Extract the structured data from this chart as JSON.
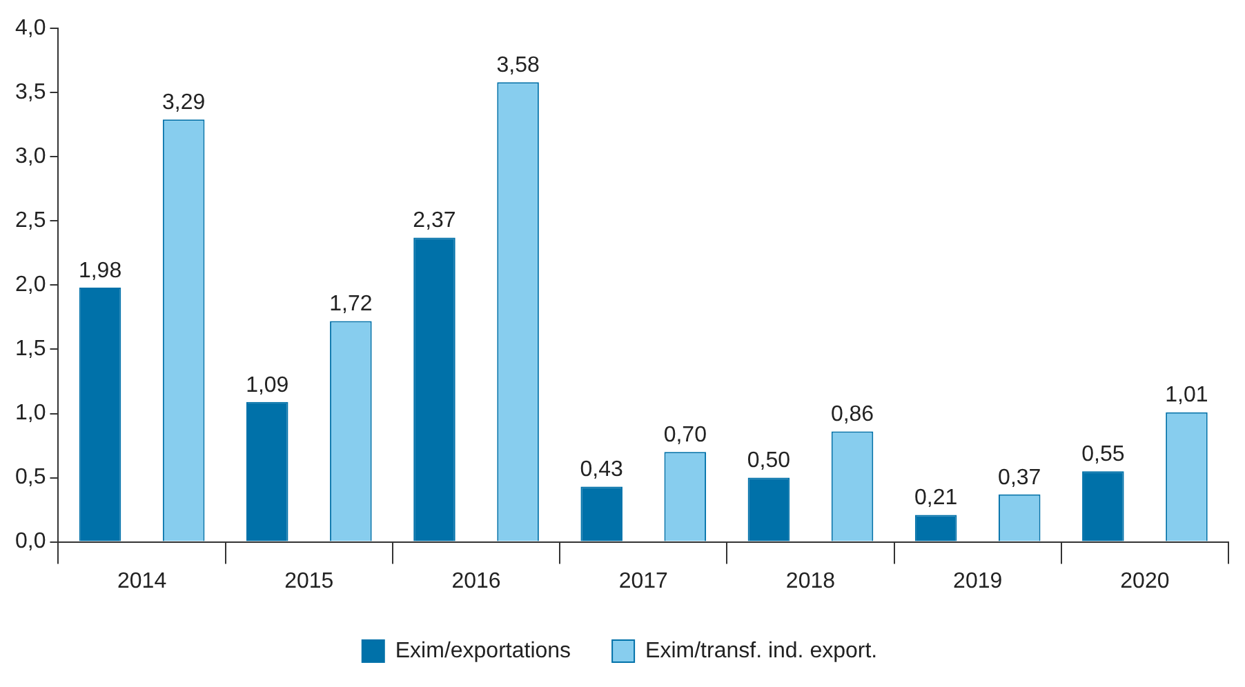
{
  "chart_data": {
    "type": "bar",
    "categories": [
      "2014",
      "2015",
      "2016",
      "2017",
      "2018",
      "2019",
      "2020"
    ],
    "series": [
      {
        "name": "Exim/exportations",
        "color": "#0071a9",
        "values": [
          1.98,
          1.09,
          2.37,
          0.43,
          0.5,
          0.21,
          0.55
        ],
        "value_labels": [
          "1,98",
          "1,09",
          "2,37",
          "0,43",
          "0,50",
          "0,21",
          "0,55"
        ]
      },
      {
        "name": "Exim/transf. ind. export.",
        "color": "#87cdee",
        "values": [
          3.29,
          1.72,
          3.58,
          0.7,
          0.86,
          0.37,
          1.01
        ],
        "value_labels": [
          "3,29",
          "1,72",
          "3,58",
          "0,70",
          "0,86",
          "0,37",
          "1,01"
        ]
      }
    ],
    "ylim": [
      0,
      4
    ],
    "yticks": [
      {
        "value": 0,
        "label": "0,0"
      },
      {
        "value": 0.5,
        "label": "0,5"
      },
      {
        "value": 1,
        "label": "1,0"
      },
      {
        "value": 1.5,
        "label": "1,5"
      },
      {
        "value": 2,
        "label": "2,0"
      },
      {
        "value": 2.5,
        "label": "2,5"
      },
      {
        "value": 3,
        "label": "3,0"
      },
      {
        "value": 3.5,
        "label": "3,5"
      },
      {
        "value": 4,
        "label": "4,0"
      }
    ],
    "grid": false,
    "legend": "bottom"
  }
}
